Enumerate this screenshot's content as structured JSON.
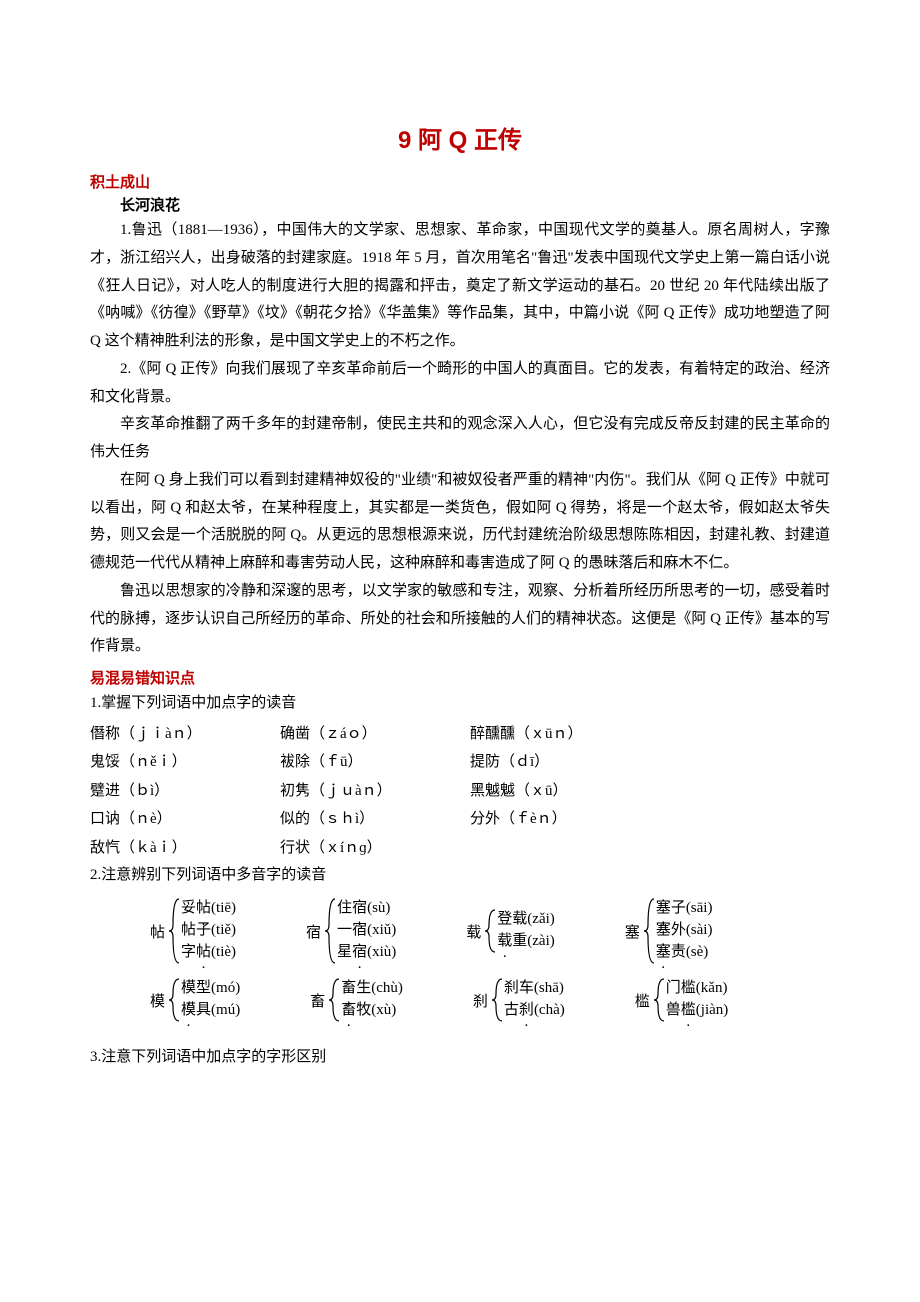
{
  "title": "9 阿 Q 正传",
  "sec_jitu": "积土成山",
  "sec_changhe": "长河浪花",
  "para1": "1.鲁迅（1881—1936），中国伟大的文学家、思想家、革命家，中国现代文学的奠基人。原名周树人，字豫才，浙江绍兴人，出身破落的封建家庭。1918 年 5 月，首次用笔名\"鲁迅\"发表中国现代文学史上第一篇白话小说《狂人日记》，对人吃人的制度进行大胆的揭露和抨击，奠定了新文学运动的基石。20 世纪 20 年代陆续出版了《呐喊》《彷徨》《野草》《坟》《朝花夕拾》《华盖集》等作品集，其中，中篇小说《阿 Q 正传》成功地塑造了阿 Q 这个精神胜利法的形象，是中国文学史上的不朽之作。",
  "para2": "2.《阿 Q 正传》向我们展现了辛亥革命前后一个畸形的中国人的真面目。它的发表，有着特定的政治、经济和文化背景。",
  "para3": "辛亥革命推翻了两千多年的封建帝制，使民主共和的观念深入人心，但它没有完成反帝反封建的民主革命的伟大任务",
  "para4": "在阿 Q 身上我们可以看到封建精神奴役的\"业绩\"和被奴役者严重的精神\"内伤\"。我们从《阿 Q 正传》中就可以看出，阿 Q 和赵太爷，在某种程度上，其实都是一类货色，假如阿 Q 得势，将是一个赵太爷，假如赵太爷失势，则又会是一个活脱脱的阿 Q。从更远的思想根源来说，历代封建统治阶级思想陈陈相因，封建礼教、封建道德规范一代代从精神上麻醉和毒害劳动人民，这种麻醉和毒害造成了阿 Q 的愚昧落后和麻木不仁。",
  "para5": "鲁迅以思想家的冷静和深邃的思考，以文学家的敏感和专注，观察、分析着所经历所思考的一切，感受着时代的脉搏，逐步认识自己所经历的革命、所处的社会和所接触的人们的精神状态。这便是《阿 Q 正传》基本的写作背景。",
  "sec_yihun": "易混易错知识点",
  "line1_heading": "1.掌握下列词语中加点字的读音",
  "pinyin": {
    "r1": {
      "a": "僭称（ｊｉàｎ）",
      "b": "确凿（ｚáｏ）",
      "c": "醉醺醺（ｘūｎ）"
    },
    "r2": {
      "a": "鬼馁（ｎěｉ）",
      "b": "袚除（ｆū）",
      "c": "提防（ｄī）"
    },
    "r3": {
      "a": "躄进（ｂì）",
      "b": "初隽（ｊｕàｎ）",
      "c": "黑魆魆（ｘū）"
    },
    "r4": {
      "a": "口讷（ｎè）",
      "b": "似的（ｓｈì）",
      "c": "分外（ｆèｎ）"
    },
    "r5": {
      "a": "敌忾（ｋàｉ）",
      "b": "行状（ｘíｎɡ）",
      "c": ""
    }
  },
  "line2_heading": "2.注意辨别下列词语中多音字的读音",
  "multi": {
    "tie": {
      "head": "帖",
      "items": [
        "妥帖(tiē)",
        "帖子(tiě)",
        "字帖(tiè)"
      ],
      "dot": [
        1,
        0,
        1
      ]
    },
    "su": {
      "head": "宿",
      "items": [
        "住宿(sù)",
        "一宿(xiǔ)",
        "星宿(xiù)"
      ],
      "dot": [
        1,
        1,
        1
      ]
    },
    "zai": {
      "head": "载",
      "items": [
        "登载(zǎi)",
        "载重(zài)"
      ],
      "dot": [
        1,
        0
      ]
    },
    "sai": {
      "head": "塞",
      "items": [
        "塞子(sāi)",
        "塞外(sài)",
        "塞责(sè)"
      ],
      "dot": [
        0,
        0,
        0
      ]
    },
    "mo": {
      "head": "模",
      "items": [
        "模型(mó)",
        "模具(mú)"
      ],
      "dot": [
        0,
        0
      ]
    },
    "chu": {
      "head": "畜",
      "items": [
        "畜生(chù)",
        "畜牧(xù)"
      ],
      "dot": [
        0,
        0
      ]
    },
    "sha": {
      "head": "刹",
      "items": [
        "刹车(shā)",
        "古刹(chà)"
      ],
      "dot": [
        0,
        1
      ]
    },
    "kan": {
      "head": "槛",
      "items": [
        "门槛(kǎn)",
        "兽槛(jiàn)"
      ],
      "dot": [
        1,
        1
      ]
    }
  },
  "line3_heading": "3.注意下列词语中加点字的字形区别",
  "brace_color": "#000000"
}
